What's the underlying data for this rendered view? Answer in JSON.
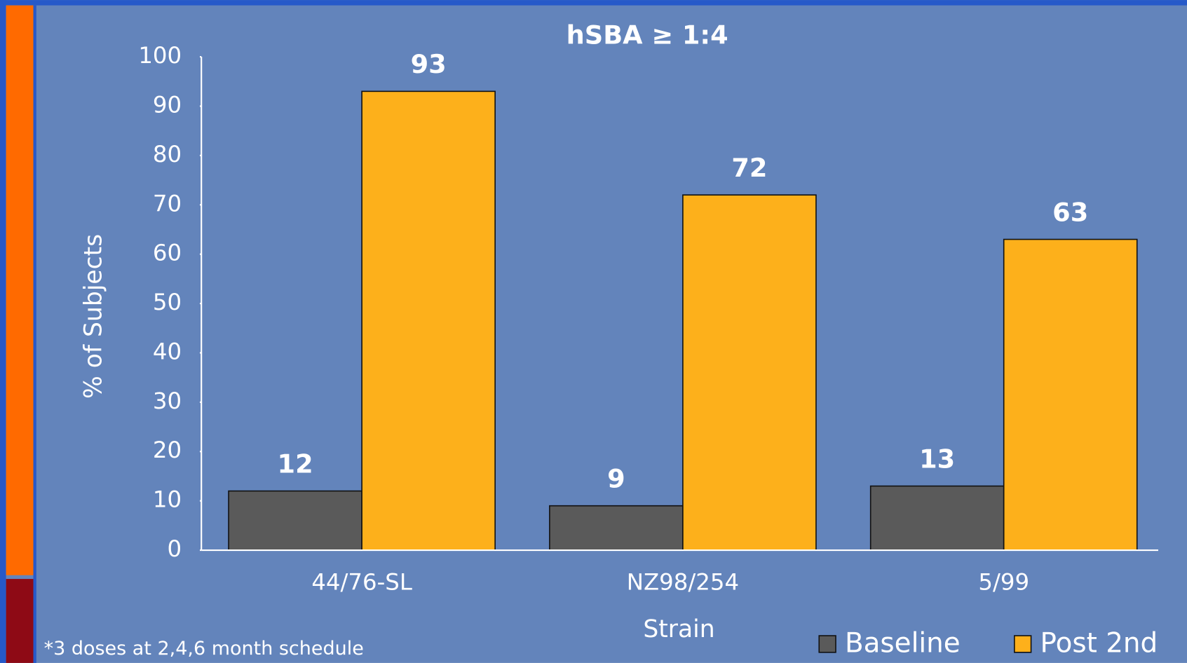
{
  "chart_data": {
    "type": "bar",
    "title": "hSBA ≥ 1:4",
    "xlabel": "Strain",
    "ylabel": "% of Subjects",
    "categories": [
      "44/76-SL",
      "NZ98/254",
      "5/99"
    ],
    "series": [
      {
        "name": "Baseline",
        "color": "#5a5a5a",
        "values": [
          12,
          9,
          13
        ]
      },
      {
        "name": "Post 2nd",
        "color": "#fdb01b",
        "values": [
          93,
          72,
          63
        ]
      }
    ],
    "ylim": [
      0,
      100
    ],
    "yticks": [
      0,
      10,
      20,
      30,
      40,
      50,
      60,
      70,
      80,
      90,
      100
    ],
    "grid": false,
    "legend": "bottom-right",
    "footnote": "*3 doses at 2,4,6 month schedule"
  }
}
